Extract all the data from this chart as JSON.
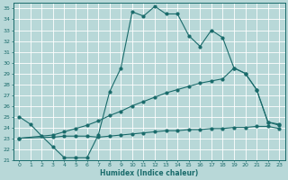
{
  "xlabel": "Humidex (Indice chaleur)",
  "xlim": [
    -0.5,
    23.5
  ],
  "ylim": [
    21,
    35.5
  ],
  "xticks": [
    0,
    1,
    2,
    3,
    4,
    5,
    6,
    7,
    8,
    9,
    10,
    11,
    12,
    13,
    14,
    15,
    16,
    17,
    18,
    19,
    20,
    21,
    22,
    23
  ],
  "yticks": [
    21,
    22,
    23,
    24,
    25,
    26,
    27,
    28,
    29,
    30,
    31,
    32,
    33,
    34,
    35
  ],
  "bg_color": "#b8d8d8",
  "line_color": "#1a6b6b",
  "grid_color": "#d0e8e8",
  "line1_x": [
    0,
    1,
    2,
    3,
    4,
    5,
    6,
    7,
    8,
    9,
    10,
    11,
    12,
    13,
    14,
    15,
    16,
    17,
    18,
    19,
    20,
    21,
    22,
    23
  ],
  "line1_y": [
    25.0,
    24.3,
    23.2,
    22.2,
    21.2,
    21.2,
    21.2,
    23.3,
    27.3,
    29.5,
    34.7,
    34.3,
    35.2,
    34.5,
    34.5,
    32.5,
    31.5,
    33.0,
    32.3,
    29.5,
    29.0,
    27.5,
    24.5,
    24.2
  ],
  "line2_x": [
    0,
    3,
    4,
    5,
    6,
    7,
    8,
    9,
    10,
    11,
    12,
    13,
    14,
    15,
    16,
    17,
    18,
    19,
    20,
    21,
    22,
    23
  ],
  "line2_y": [
    23.0,
    23.3,
    23.6,
    23.9,
    24.2,
    24.6,
    25.1,
    25.5,
    26.0,
    26.4,
    26.8,
    27.2,
    27.5,
    27.8,
    28.1,
    28.3,
    28.5,
    29.5,
    29.0,
    27.5,
    24.5,
    24.3
  ],
  "line3_x": [
    0,
    3,
    4,
    5,
    6,
    7,
    8,
    9,
    10,
    11,
    12,
    13,
    14,
    15,
    16,
    17,
    18,
    19,
    20,
    21,
    22,
    23
  ],
  "line3_y": [
    23.0,
    23.1,
    23.2,
    23.2,
    23.2,
    23.1,
    23.2,
    23.3,
    23.4,
    23.5,
    23.6,
    23.7,
    23.7,
    23.8,
    23.8,
    23.9,
    23.9,
    24.0,
    24.0,
    24.1,
    24.1,
    23.9
  ]
}
